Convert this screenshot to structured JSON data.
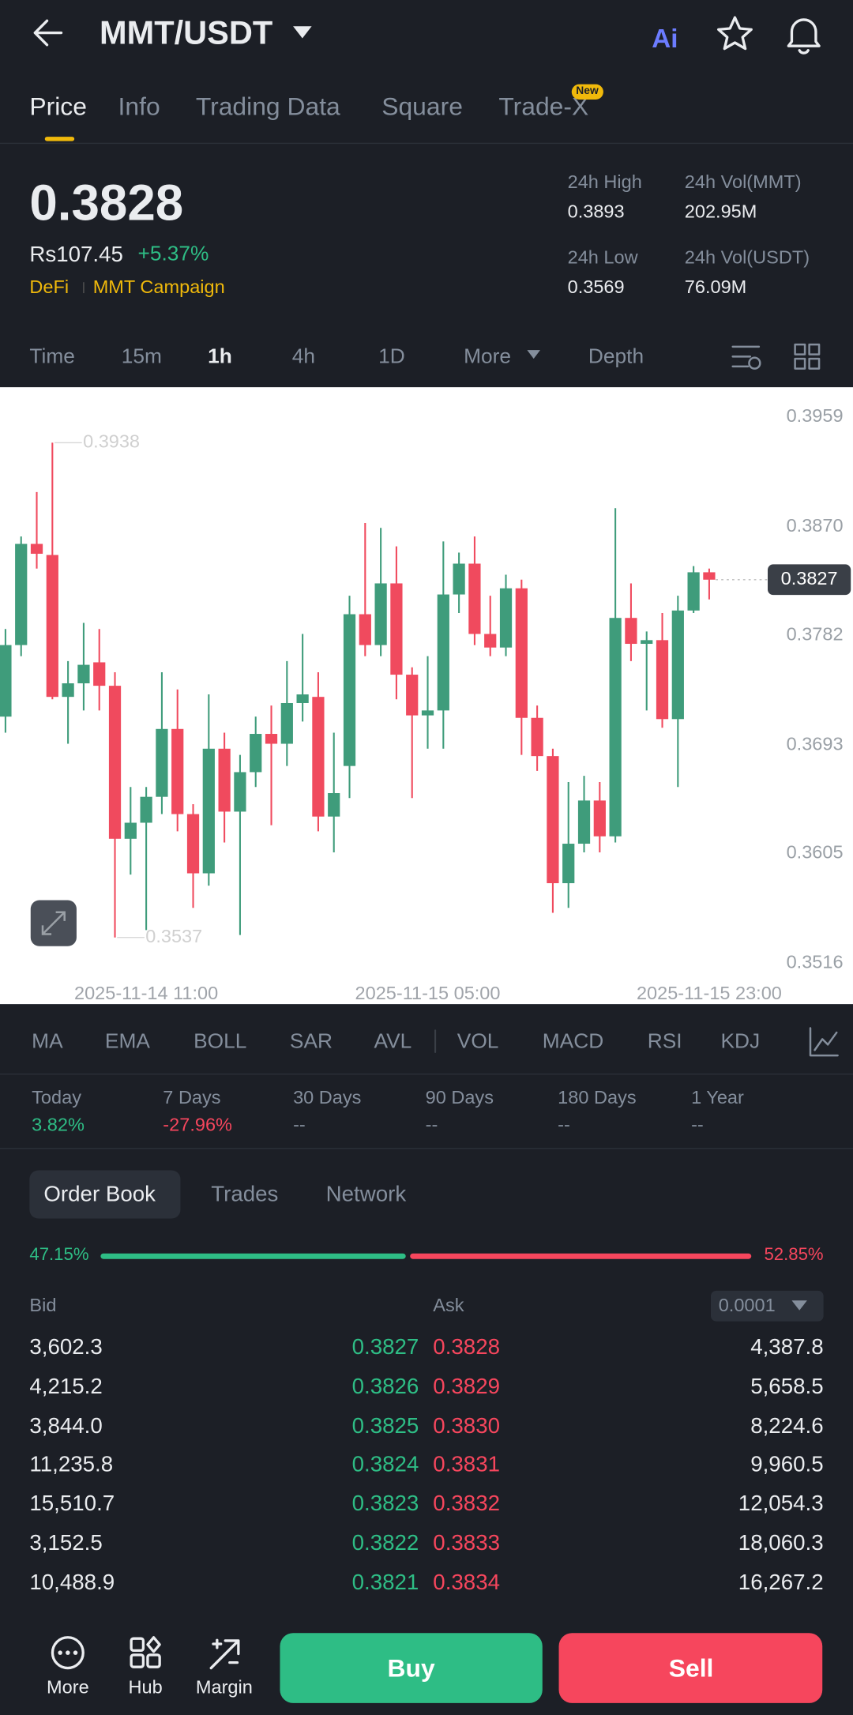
{
  "header": {
    "title": "MMT/USDT",
    "tabs": [
      "Price",
      "Info",
      "Trading Data",
      "Square",
      "Trade-X"
    ],
    "badge": "New"
  },
  "summary": {
    "price": "0.3828",
    "fiat": "Rs107.45",
    "change": "+5.37%",
    "tags": [
      "DeFi",
      "MMT Campaign"
    ],
    "stats": [
      {
        "label": "24h High",
        "value": "0.3893"
      },
      {
        "label": "24h Vol(MMT)",
        "value": "202.95M"
      },
      {
        "label": "24h Low",
        "value": "0.3569"
      },
      {
        "label": "24h Vol(USDT)",
        "value": "76.09M"
      }
    ]
  },
  "intervals": [
    "Time",
    "15m",
    "1h",
    "4h",
    "1D",
    "More",
    "Depth"
  ],
  "chart_data": {
    "type": "candlestick",
    "up_color": "#3f9c7b",
    "down_color": "#f04a5e",
    "categories": [
      null,
      null,
      null,
      null,
      null,
      null,
      null,
      null,
      null,
      "2025-11-14 11:00",
      null,
      null,
      null,
      null,
      null,
      null,
      null,
      null,
      null,
      null,
      null,
      null,
      null,
      null,
      null,
      null,
      null,
      "2025-11-15 05:00",
      null,
      null,
      null,
      null,
      null,
      null,
      null,
      null,
      null,
      null,
      null,
      null,
      null,
      null,
      null,
      null,
      null,
      "2025-11-15 23:00"
    ],
    "open": [
      0.3716,
      0.3774,
      0.3856,
      0.3847,
      0.3732,
      0.3743,
      0.376,
      0.3741,
      0.3617,
      0.363,
      0.3651,
      0.3706,
      0.3637,
      0.3589,
      0.369,
      0.3639,
      0.3671,
      0.3702,
      0.3694,
      0.3727,
      0.3732,
      0.3635,
      0.3676,
      0.3799,
      0.3774,
      0.3824,
      0.375,
      0.3717,
      0.3721,
      0.3815,
      0.384,
      0.3783,
      0.3772,
      0.382,
      0.3715,
      0.3684,
      0.3581,
      0.3613,
      0.3648,
      0.3619,
      0.3796,
      0.3775,
      0.3778,
      0.3714,
      0.3802,
      0.3833
    ],
    "high": [
      0.3787,
      0.3862,
      0.3898,
      0.3938,
      0.3761,
      0.3792,
      0.3787,
      0.3752,
      0.3659,
      0.3659,
      0.3752,
      0.3738,
      0.3645,
      0.3734,
      0.3703,
      0.3685,
      0.3716,
      0.3725,
      0.3761,
      0.3783,
      0.3752,
      0.3703,
      0.3814,
      0.3873,
      0.3869,
      0.3854,
      0.3756,
      0.3765,
      0.3858,
      0.3849,
      0.3862,
      0.3814,
      0.3831,
      0.3827,
      0.3725,
      0.369,
      0.3663,
      0.3668,
      0.3663,
      0.3885,
      0.3824,
      0.3785,
      0.38,
      0.3814,
      0.3838,
      0.3836
    ],
    "low": [
      0.3703,
      0.3765,
      0.3836,
      0.373,
      0.3694,
      0.3721,
      0.3721,
      0.3537,
      0.3588,
      0.3543,
      0.3637,
      0.3623,
      0.3561,
      0.3579,
      0.3614,
      0.3539,
      0.3659,
      0.3628,
      0.3676,
      0.3712,
      0.3623,
      0.3606,
      0.365,
      0.3765,
      0.3765,
      0.373,
      0.365,
      0.369,
      0.369,
      0.38,
      0.3774,
      0.3765,
      0.3765,
      0.3685,
      0.3672,
      0.3557,
      0.3561,
      0.3606,
      0.3606,
      0.3614,
      0.3761,
      0.3721,
      0.3707,
      0.3659,
      0.38,
      0.3811
    ],
    "close": [
      0.3774,
      0.3856,
      0.3848,
      0.3732,
      0.3743,
      0.3758,
      0.3741,
      0.3617,
      0.363,
      0.3651,
      0.3706,
      0.3637,
      0.3589,
      0.369,
      0.3639,
      0.3671,
      0.3702,
      0.3694,
      0.3727,
      0.3734,
      0.3635,
      0.3654,
      0.3799,
      0.3774,
      0.3824,
      0.375,
      0.3717,
      0.3721,
      0.3815,
      0.384,
      0.3783,
      0.3772,
      0.382,
      0.3715,
      0.3684,
      0.3581,
      0.3613,
      0.3648,
      0.3619,
      0.3796,
      0.3775,
      0.3778,
      0.3714,
      0.3802,
      0.3833,
      0.3827
    ],
    "ylim": [
      0.3483,
      0.3983
    ],
    "yticks": [
      0.3959,
      {
        "value": 0.387,
        "label": "0.3870"
      },
      0.3782,
      0.3693,
      0.3605,
      0.3516
    ],
    "grid": false,
    "annotations": [
      0.3938,
      0.3537
    ],
    "last_price": 0.3827
  },
  "indicators": [
    "MA",
    "EMA",
    "BOLL",
    "SAR",
    "AVL",
    "VOL",
    "MACD",
    "RSI",
    "KDJ"
  ],
  "performance": [
    {
      "label": "Today",
      "value": "3.82%"
    },
    {
      "label": "7 Days",
      "value": "-27.96%"
    },
    {
      "label": "30 Days",
      "value": "--"
    },
    {
      "label": "90 Days",
      "value": "--"
    },
    {
      "label": "180 Days",
      "value": "--"
    },
    {
      "label": "1 Year",
      "value": "--"
    }
  ],
  "order_book": {
    "tabs": [
      "Order Book",
      "Trades",
      "Network"
    ],
    "bid_ratio": "47.15%",
    "ask_ratio": "52.85%",
    "bid_label": "Bid",
    "ask_label": "Ask",
    "precision": "0.0001",
    "rows": [
      [
        "3,602.3",
        "0.3827",
        "0.3828",
        "4,387.8"
      ],
      [
        "4,215.2",
        "0.3826",
        "0.3829",
        "5,658.5"
      ],
      [
        "3,844.0",
        "0.3825",
        "0.3830",
        "8,224.6"
      ],
      [
        "11,235.8",
        "0.3824",
        "0.3831",
        "9,960.5"
      ],
      [
        "15,510.7",
        "0.3823",
        "0.3832",
        "12,054.3"
      ],
      [
        "3,152.5",
        "0.3822",
        "0.3833",
        "18,060.3"
      ],
      [
        "10,488.9",
        "0.3821",
        "0.3834",
        "16,267.2"
      ]
    ]
  },
  "bottom": {
    "nav": [
      "More",
      "Hub",
      "Margin"
    ],
    "buy": "Buy",
    "sell": "Sell"
  }
}
